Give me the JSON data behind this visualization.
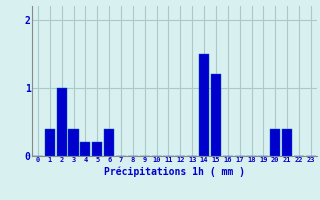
{
  "hours": [
    0,
    1,
    2,
    3,
    4,
    5,
    6,
    7,
    8,
    9,
    10,
    11,
    12,
    13,
    14,
    15,
    16,
    17,
    18,
    19,
    20,
    21,
    22,
    23
  ],
  "values": [
    0.0,
    0.4,
    1.0,
    0.4,
    0.2,
    0.2,
    0.4,
    0.0,
    0.0,
    0.0,
    0.0,
    0.0,
    0.0,
    0.0,
    1.5,
    1.2,
    0.0,
    0.0,
    0.0,
    0.0,
    0.4,
    0.4,
    0.0,
    0.0
  ],
  "bar_color": "#0000cc",
  "bar_edge_color": "#0055cc",
  "background_color": "#d8f0f0",
  "grid_color": "#aacaca",
  "axis_color": "#888888",
  "tick_color": "#0000cc",
  "xlabel": "Précipitations 1h ( mm )",
  "xlabel_color": "#0000cc",
  "ylim": [
    0,
    2.2
  ],
  "yticks": [
    0,
    1,
    2
  ],
  "xlim": [
    -0.5,
    23.5
  ]
}
